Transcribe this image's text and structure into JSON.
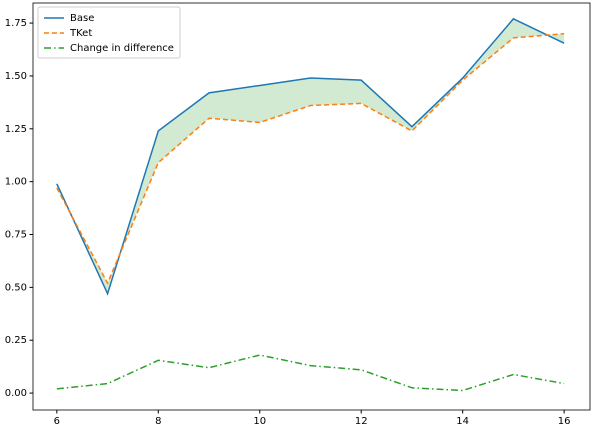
{
  "chart_data": {
    "type": "line",
    "x": [
      6,
      7,
      8,
      9,
      10,
      11,
      12,
      13,
      14,
      15,
      16
    ],
    "series": [
      {
        "name": "Base",
        "color": "#1f77b4",
        "dash": "solid",
        "values": [
          0.99,
          0.47,
          1.24,
          1.42,
          1.455,
          1.49,
          1.48,
          1.26,
          1.49,
          1.77,
          1.655
        ]
      },
      {
        "name": "TKet",
        "color": "#ff7f0e",
        "dash": "dashed",
        "values": [
          0.97,
          0.52,
          1.09,
          1.3,
          1.28,
          1.36,
          1.37,
          1.24,
          1.48,
          1.68,
          1.7
        ]
      },
      {
        "name": "Change in difference",
        "color": "#2ca02c",
        "dash": "dashdot",
        "values": [
          0.02,
          0.045,
          0.155,
          0.12,
          0.18,
          0.13,
          0.11,
          0.025,
          0.012,
          0.088,
          0.045
        ]
      }
    ],
    "fill_between": {
      "series": [
        0,
        1
      ],
      "color": "#2ca02c",
      "opacity": 0.22
    },
    "xlim": [
      5.53,
      16.51
    ],
    "ylim": [
      -0.08,
      1.845
    ],
    "xticks": [
      6,
      8,
      10,
      12,
      14,
      16
    ],
    "yticks": [
      {
        "value": 0,
        "label": "0.00"
      },
      {
        "value": 0.25,
        "label": "0.25"
      },
      {
        "value": 0.5,
        "label": "0.50"
      },
      {
        "value": 0.75,
        "label": "0.75"
      },
      {
        "value": 1,
        "label": "1.00"
      },
      {
        "value": 1.25,
        "label": "1.25"
      },
      {
        "value": 1.5,
        "label": "1.50"
      },
      {
        "value": 1.75,
        "label": "1.75"
      }
    ],
    "grid": false,
    "legend": "upper-left"
  }
}
